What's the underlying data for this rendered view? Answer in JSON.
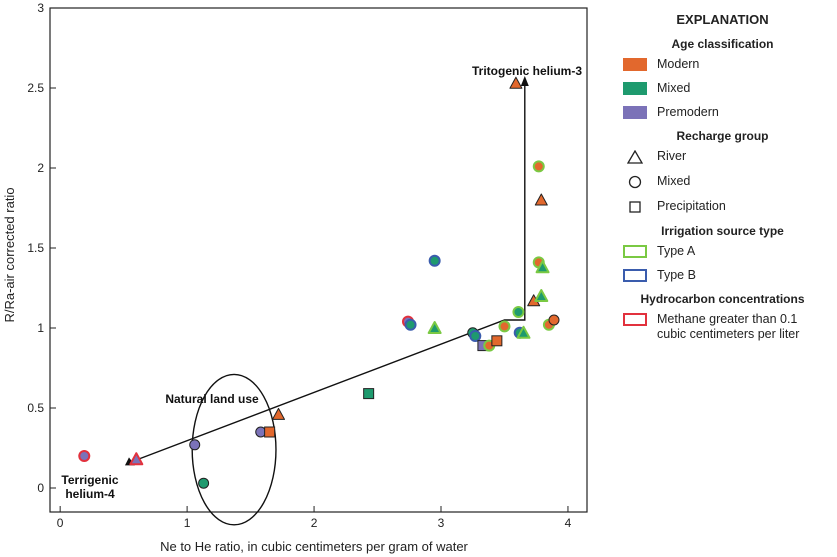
{
  "chart_data": {
    "type": "scatter",
    "xlabel": "Ne to He ratio, in cubic centimeters per gram of water",
    "ylabel": "R/Ra-air corrected ratio",
    "xlim": [
      -0.08,
      4.15
    ],
    "ylim": [
      -0.15,
      3.0
    ],
    "xticks": [
      0,
      1,
      2,
      3,
      4
    ],
    "yticks": [
      0,
      0.5,
      1,
      1.5,
      2,
      2.5,
      3
    ],
    "xtick_labels": [
      "0",
      "1",
      "2",
      "3",
      "4"
    ],
    "ytick_labels": [
      "0",
      "0.5",
      "1",
      "1.5",
      "2",
      "2.5",
      "3"
    ],
    "grid": false,
    "legend": "right",
    "colors": {
      "Modern": "#e2682d",
      "Mixed": "#1e9a6e",
      "Premodern": "#7b72b8",
      "Type A": "#7ac943",
      "Type B": "#3a5cad",
      "Methane": "#e2313d",
      "none": "#222222"
    },
    "mixing_lines": [
      {
        "points": [
          [
            0.55,
            0.16
          ],
          [
            3.5,
            1.05
          ],
          [
            3.66,
            1.05
          ],
          [
            3.66,
            2.55
          ]
        ]
      }
    ],
    "ellipse": {
      "cx": 1.37,
      "cy": 0.24,
      "rx": 0.33,
      "ry": 0.47
    },
    "annotations": {
      "tritogenic": "Tritogenic helium-3",
      "natural": "Natural land use",
      "terrigenic_1": "Terrigenic",
      "terrigenic_2": "helium-4"
    },
    "points": [
      {
        "x": 0.19,
        "y": 0.2,
        "age": "Premodern",
        "group": "Mixed",
        "outline": "Methane"
      },
      {
        "x": 0.6,
        "y": 0.18,
        "age": "Premodern",
        "group": "River",
        "outline": "Methane"
      },
      {
        "x": 1.06,
        "y": 0.27,
        "age": "Premodern",
        "group": "Mixed",
        "outline": "none"
      },
      {
        "x": 1.13,
        "y": 0.03,
        "age": "Mixed",
        "group": "Mixed",
        "outline": "none"
      },
      {
        "x": 1.58,
        "y": 0.35,
        "age": "Premodern",
        "group": "Mixed",
        "outline": "none"
      },
      {
        "x": 1.65,
        "y": 0.35,
        "age": "Modern",
        "group": "Precipitation",
        "outline": "none"
      },
      {
        "x": 1.72,
        "y": 0.46,
        "age": "Modern",
        "group": "River",
        "outline": "none"
      },
      {
        "x": 2.43,
        "y": 0.59,
        "age": "Mixed",
        "group": "Precipitation",
        "outline": "none"
      },
      {
        "x": 2.74,
        "y": 1.04,
        "age": "Premodern",
        "group": "Mixed",
        "outline": "Methane"
      },
      {
        "x": 2.76,
        "y": 1.02,
        "age": "Mixed",
        "group": "Mixed",
        "outline": "Type B"
      },
      {
        "x": 2.95,
        "y": 1.0,
        "age": "Mixed",
        "group": "River",
        "outline": "Type A"
      },
      {
        "x": 2.95,
        "y": 1.42,
        "age": "Mixed",
        "group": "Mixed",
        "outline": "Type B"
      },
      {
        "x": 3.25,
        "y": 0.97,
        "age": "Mixed",
        "group": "Mixed",
        "outline": "none"
      },
      {
        "x": 3.27,
        "y": 0.95,
        "age": "Mixed",
        "group": "Mixed",
        "outline": "Type B"
      },
      {
        "x": 3.33,
        "y": 0.89,
        "age": "Premodern",
        "group": "Precipitation",
        "outline": "none"
      },
      {
        "x": 3.38,
        "y": 0.89,
        "age": "Modern",
        "group": "Mixed",
        "outline": "Type A"
      },
      {
        "x": 3.44,
        "y": 0.92,
        "age": "Modern",
        "group": "Precipitation",
        "outline": "none"
      },
      {
        "x": 3.5,
        "y": 1.01,
        "age": "Modern",
        "group": "Mixed",
        "outline": "Type A"
      },
      {
        "x": 3.59,
        "y": 2.53,
        "age": "Modern",
        "group": "River",
        "outline": "none"
      },
      {
        "x": 3.61,
        "y": 1.1,
        "age": "Mixed",
        "group": "Mixed",
        "outline": "Type A"
      },
      {
        "x": 3.62,
        "y": 0.97,
        "age": "Mixed",
        "group": "Mixed",
        "outline": "Type B"
      },
      {
        "x": 3.65,
        "y": 0.97,
        "age": "Mixed",
        "group": "River",
        "outline": "Type A"
      },
      {
        "x": 3.73,
        "y": 1.17,
        "age": "Modern",
        "group": "River",
        "outline": "none"
      },
      {
        "x": 3.77,
        "y": 2.01,
        "age": "Modern",
        "group": "Mixed",
        "outline": "Type A"
      },
      {
        "x": 3.77,
        "y": 1.41,
        "age": "Modern",
        "group": "Mixed",
        "outline": "Type A"
      },
      {
        "x": 3.79,
        "y": 1.8,
        "age": "Modern",
        "group": "River",
        "outline": "none"
      },
      {
        "x": 3.79,
        "y": 1.2,
        "age": "Mixed",
        "group": "River",
        "outline": "Type A"
      },
      {
        "x": 3.8,
        "y": 1.38,
        "age": "Mixed",
        "group": "River",
        "outline": "Type A"
      },
      {
        "x": 3.85,
        "y": 1.02,
        "age": "Modern",
        "group": "Mixed",
        "outline": "Type A"
      },
      {
        "x": 3.89,
        "y": 1.05,
        "age": "Modern",
        "group": "Mixed",
        "outline": "none"
      }
    ]
  },
  "legend": {
    "title": "EXPLANATION",
    "age_heading": "Age classification",
    "age_items": [
      {
        "label": "Modern",
        "color": "#e2682d"
      },
      {
        "label": "Mixed",
        "color": "#1e9a6e"
      },
      {
        "label": "Premodern",
        "color": "#7b72b8"
      }
    ],
    "recharge_heading": "Recharge group",
    "recharge_items": [
      {
        "label": "River",
        "symbol": "triangle"
      },
      {
        "label": "Mixed",
        "symbol": "circle"
      },
      {
        "label": "Precipitation",
        "symbol": "square"
      }
    ],
    "irrigation_heading": "Irrigation source type",
    "irrigation_items": [
      {
        "label": "Type A",
        "color": "#7ac943"
      },
      {
        "label": "Type B",
        "color": "#3a5cad"
      }
    ],
    "hydrocarbon_heading": "Hydrocarbon concentrations",
    "hydrocarbon_items": [
      {
        "label": "Methane greater than 0.1 cubic centimeters per liter",
        "color": "#e2313d"
      }
    ]
  }
}
